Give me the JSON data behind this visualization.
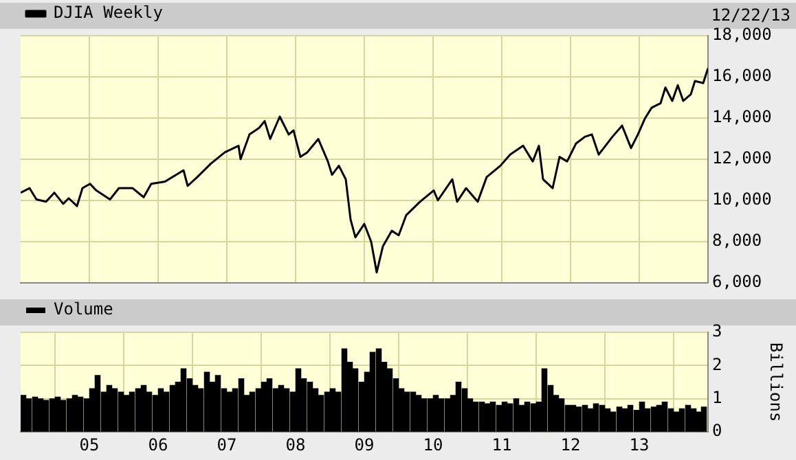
{
  "chart_data": [
    {
      "type": "line",
      "annotations": [
        "12/22/13"
      ],
      "legend": "top left",
      "grid": true,
      "tick_labels": "y",
      "xlim": [
        2004,
        2014
      ],
      "xticks": [
        {
          "value": 2005,
          "label": null
        },
        {
          "value": 2006,
          "label": null
        },
        {
          "value": 2007,
          "label": null
        },
        {
          "value": 2008,
          "label": null
        },
        {
          "value": 2009,
          "label": null
        },
        {
          "value": 2010,
          "label": null
        },
        {
          "value": 2011,
          "label": null
        },
        {
          "value": 2012,
          "label": null
        },
        {
          "value": 2013,
          "label": null
        }
      ],
      "ylim": [
        6000,
        18000
      ],
      "yticks": [
        {
          "value": 6000,
          "label": "6,000"
        },
        {
          "value": 8000,
          "label": "8,000"
        },
        {
          "value": 10000,
          "label": "10,000"
        },
        {
          "value": 12000,
          "label": "12,000"
        },
        {
          "value": 14000,
          "label": "14,000"
        },
        {
          "value": 16000,
          "label": "16,000"
        },
        {
          "value": 18000,
          "label": "18,000"
        }
      ],
      "series": [
        {
          "name": "DJIA Weekly",
          "color": "#000000",
          "x": [
            2004.0,
            2004.13,
            2004.23,
            2004.37,
            2004.49,
            2004.62,
            2004.7,
            2004.82,
            2004.9,
            2005.01,
            2005.1,
            2005.3,
            2005.43,
            2005.63,
            2005.79,
            2005.9,
            2006.1,
            2006.37,
            2006.43,
            2006.57,
            2006.77,
            2006.97,
            2007.17,
            2007.2,
            2007.33,
            2007.47,
            2007.55,
            2007.63,
            2007.77,
            2007.9,
            2007.97,
            2008.07,
            2008.17,
            2008.33,
            2008.47,
            2008.53,
            2008.63,
            2008.73,
            2008.8,
            2008.87,
            2009.0,
            2009.1,
            2009.18,
            2009.27,
            2009.4,
            2009.5,
            2009.61,
            2009.81,
            2010.01,
            2010.07,
            2010.28,
            2010.35,
            2010.48,
            2010.65,
            2010.78,
            2010.98,
            2011.12,
            2011.31,
            2011.45,
            2011.54,
            2011.6,
            2011.74,
            2011.84,
            2011.95,
            2012.08,
            2012.21,
            2012.31,
            2012.41,
            2012.61,
            2012.75,
            2012.88,
            2012.98,
            2013.08,
            2013.18,
            2013.31,
            2013.38,
            2013.48,
            2013.56,
            2013.64,
            2013.75,
            2013.81,
            2013.93,
            2014.0
          ],
          "values": [
            10370,
            10590,
            10040,
            9930,
            10370,
            9830,
            10100,
            9720,
            10590,
            10800,
            10480,
            10040,
            10590,
            10590,
            10150,
            10800,
            10910,
            11460,
            10700,
            11130,
            11790,
            12330,
            12650,
            12000,
            13200,
            13520,
            13850,
            12980,
            14070,
            13200,
            13400,
            12110,
            12330,
            12980,
            11890,
            11240,
            11680,
            11020,
            9070,
            8200,
            8850,
            7980,
            6500,
            7760,
            8520,
            8300,
            9280,
            9930,
            10480,
            10000,
            11020,
            9930,
            10590,
            9930,
            11130,
            11680,
            12220,
            12650,
            11890,
            12650,
            11020,
            10590,
            12110,
            11890,
            12760,
            13090,
            13200,
            12220,
            13090,
            13630,
            12540,
            13200,
            13960,
            14500,
            14720,
            15480,
            14830,
            15590,
            14830,
            15150,
            15800,
            15700,
            16420
          ]
        }
      ]
    },
    {
      "type": "bar",
      "legend": "top left",
      "grid": true,
      "ylabel": "Billions",
      "xlim": [
        2004,
        2014
      ],
      "xticks": [
        {
          "value": 2005,
          "label": "05"
        },
        {
          "value": 2006,
          "label": "06"
        },
        {
          "value": 2007,
          "label": "07"
        },
        {
          "value": 2008,
          "label": "08"
        },
        {
          "value": 2009,
          "label": "09"
        },
        {
          "value": 2010,
          "label": "10"
        },
        {
          "value": 2011,
          "label": "11"
        },
        {
          "value": 2012,
          "label": "12"
        },
        {
          "value": 2013,
          "label": "13"
        }
      ],
      "ylim": [
        0,
        3
      ],
      "yticks": [
        0,
        1,
        2,
        3
      ],
      "series": [
        {
          "name": "Volume",
          "color": "#000000",
          "values": [
            1.1,
            1.0,
            1.05,
            1.0,
            0.95,
            1.0,
            1.05,
            0.95,
            1.0,
            1.1,
            1.05,
            1.0,
            1.3,
            1.7,
            1.2,
            1.4,
            1.3,
            1.2,
            1.1,
            1.2,
            1.3,
            1.4,
            1.2,
            1.1,
            1.3,
            1.2,
            1.4,
            1.5,
            1.9,
            1.6,
            1.4,
            1.3,
            1.8,
            1.5,
            1.7,
            1.3,
            1.2,
            1.3,
            1.6,
            1.1,
            1.2,
            1.3,
            1.5,
            1.6,
            1.3,
            1.4,
            1.3,
            1.2,
            1.9,
            1.6,
            1.5,
            1.3,
            1.1,
            1.2,
            1.3,
            1.2,
            2.5,
            2.1,
            1.9,
            1.5,
            1.8,
            2.4,
            2.5,
            2.1,
            1.9,
            1.6,
            1.3,
            1.2,
            1.2,
            1.1,
            1.0,
            1.0,
            1.1,
            1.0,
            1.0,
            1.1,
            1.5,
            1.3,
            1.0,
            0.9,
            0.9,
            0.85,
            0.9,
            0.8,
            0.9,
            0.85,
            1.0,
            0.8,
            0.9,
            0.85,
            0.9,
            1.9,
            1.4,
            1.1,
            1.0,
            0.8,
            0.8,
            0.75,
            0.8,
            0.7,
            0.85,
            0.8,
            0.7,
            0.6,
            0.75,
            0.7,
            0.8,
            0.65,
            0.9,
            0.7,
            0.75,
            0.8,
            0.9,
            0.7,
            0.6,
            0.7,
            0.8,
            0.7,
            0.6,
            0.75
          ],
          "x": [
            2004.04,
            2004.12,
            2004.21,
            2004.29,
            2004.37,
            2004.46,
            2004.54,
            2004.62,
            2004.71,
            2004.79,
            2004.87,
            2004.96,
            2005.04,
            2005.12,
            2005.21,
            2005.29,
            2005.37,
            2005.46,
            2005.54,
            2005.62,
            2005.71,
            2005.79,
            2005.87,
            2005.96,
            2006.04,
            2006.12,
            2006.21,
            2006.29,
            2006.37,
            2006.46,
            2006.54,
            2006.62,
            2006.71,
            2006.79,
            2006.87,
            2006.96,
            2007.04,
            2007.12,
            2007.21,
            2007.29,
            2007.37,
            2007.46,
            2007.54,
            2007.62,
            2007.71,
            2007.79,
            2007.87,
            2007.96,
            2008.04,
            2008.12,
            2008.21,
            2008.29,
            2008.37,
            2008.46,
            2008.54,
            2008.62,
            2008.71,
            2008.79,
            2008.87,
            2008.96,
            2009.04,
            2009.12,
            2009.21,
            2009.29,
            2009.37,
            2009.46,
            2009.54,
            2009.62,
            2009.71,
            2009.79,
            2009.87,
            2009.96,
            2010.04,
            2010.12,
            2010.21,
            2010.29,
            2010.37,
            2010.46,
            2010.54,
            2010.62,
            2010.71,
            2010.79,
            2010.87,
            2010.96,
            2011.04,
            2011.12,
            2011.21,
            2011.29,
            2011.37,
            2011.46,
            2011.54,
            2011.62,
            2011.71,
            2011.79,
            2011.87,
            2011.96,
            2012.04,
            2012.12,
            2012.21,
            2012.29,
            2012.37,
            2012.46,
            2012.54,
            2012.62,
            2012.71,
            2012.79,
            2012.87,
            2012.96,
            2013.04,
            2013.12,
            2013.21,
            2013.29,
            2013.37,
            2013.46,
            2013.54,
            2013.62,
            2013.71,
            2013.79,
            2013.87,
            2013.94
          ]
        }
      ]
    }
  ]
}
